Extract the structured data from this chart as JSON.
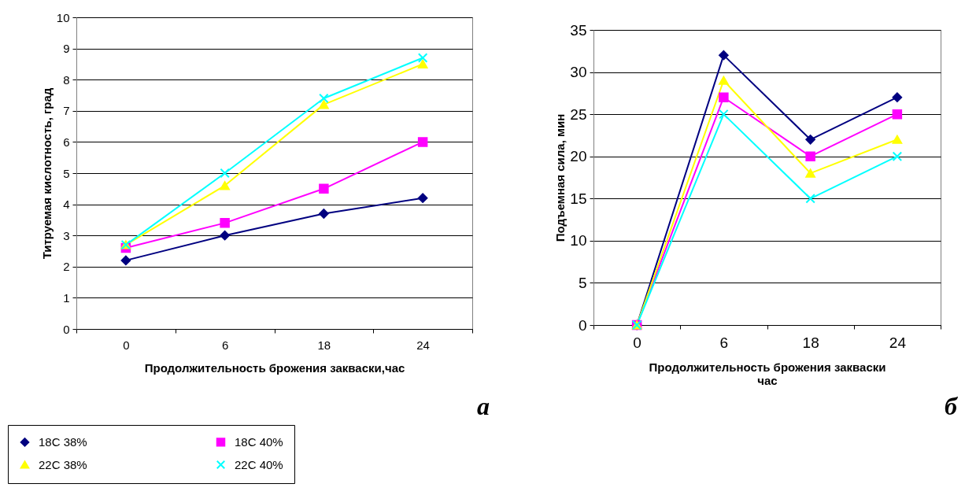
{
  "chart_data": [
    {
      "type": "line",
      "xlabel": "Продолжительность брожения закваски,час",
      "ylabel": "Титруемая кислотность, град",
      "categories": [
        "0",
        "6",
        "18",
        "24"
      ],
      "ylim": [
        0,
        10
      ],
      "yticks": [
        0,
        1,
        2,
        3,
        4,
        5,
        6,
        7,
        8,
        9,
        10
      ],
      "grid": "y",
      "legend": "bottom left",
      "annotations": [
        "а"
      ],
      "series": [
        {
          "name": "18C 38%",
          "color": "#000080",
          "marker": "diamond",
          "values": [
            2.2,
            3.0,
            3.7,
            4.2
          ]
        },
        {
          "name": "18C 40%",
          "color": "#ff00ff",
          "marker": "square",
          "values": [
            2.6,
            3.4,
            4.5,
            6.0
          ]
        },
        {
          "name": "22C 38%",
          "color": "#ffff00",
          "marker": "triangle",
          "values": [
            2.7,
            4.6,
            7.2,
            8.5
          ]
        },
        {
          "name": "22C 40%",
          "color": "#00ffff",
          "marker": "cross",
          "values": [
            2.7,
            5.0,
            7.4,
            8.7
          ]
        }
      ]
    },
    {
      "type": "line",
      "xlabel": "Продолжительность брожения закваски\nчас",
      "ylabel": "Подъемная сила, мин",
      "categories": [
        "0",
        "6",
        "18",
        "24"
      ],
      "ylim": [
        0,
        35
      ],
      "yticks": [
        0,
        5,
        10,
        15,
        20,
        25,
        30,
        35
      ],
      "grid": "y",
      "annotations": [
        "б"
      ],
      "series": [
        {
          "color": "#000080",
          "marker": "diamond",
          "values": [
            0,
            32,
            22,
            27
          ]
        },
        {
          "color": "#ff00ff",
          "marker": "square",
          "values": [
            0,
            27,
            20,
            25
          ]
        },
        {
          "color": "#ffff00",
          "marker": "triangle",
          "values": [
            0,
            29,
            18,
            22
          ]
        },
        {
          "color": "#00ffff",
          "marker": "cross",
          "values": [
            0,
            25,
            15,
            20
          ]
        }
      ]
    }
  ]
}
